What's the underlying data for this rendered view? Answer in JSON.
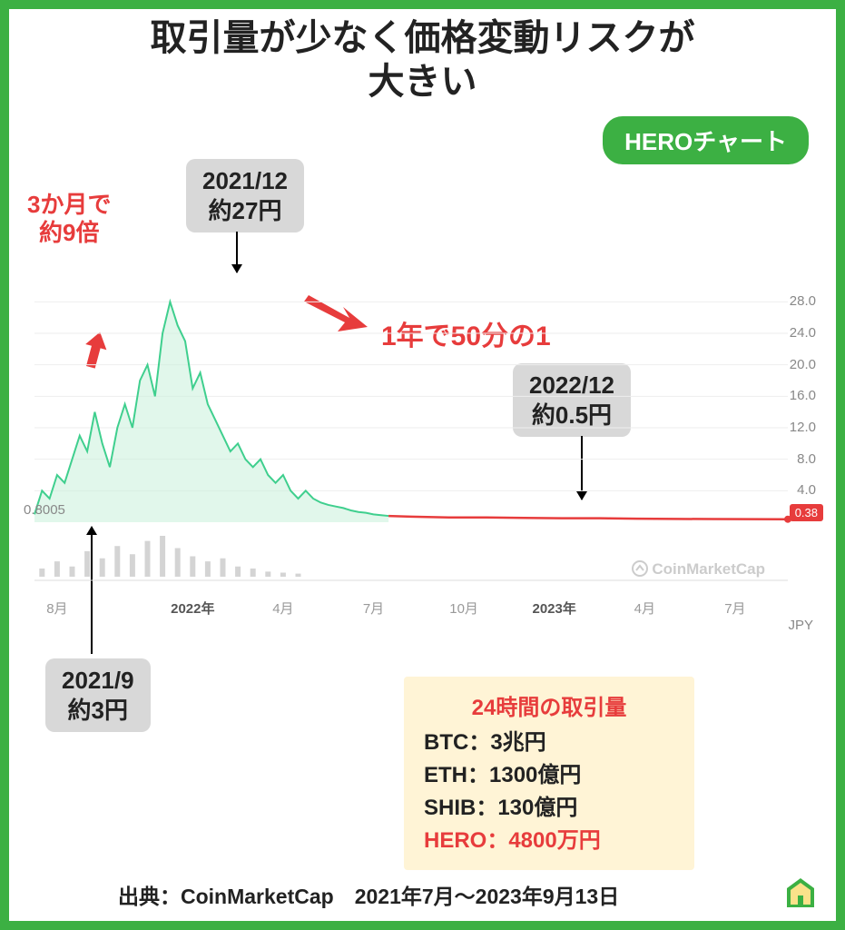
{
  "title_line1": "取引量が少なく価格変動リスクが",
  "title_line2": "大きい",
  "badge": "HEROチャート",
  "annotation_3month": "3か月で\n約9倍",
  "annotation_1year": "1年で50分の1",
  "callout_peak": {
    "date": "2021/12",
    "price": "約27円"
  },
  "callout_low": {
    "date": "2022/12",
    "price": "約0.5円"
  },
  "callout_start": {
    "date": "2021/9",
    "price": "約3円"
  },
  "chart": {
    "type": "line",
    "xlim": [
      0,
      100
    ],
    "ylim": [
      0,
      30
    ],
    "y_ticks": [
      28.0,
      24.0,
      20.0,
      16.0,
      12.0,
      8.0,
      4.0
    ],
    "x_ticks": [
      "8月",
      "2022年",
      "4月",
      "7月",
      "10月",
      "2023年",
      "4月",
      "7月"
    ],
    "x_tick_positions": [
      3,
      21,
      33,
      45,
      57,
      69,
      81,
      93
    ],
    "first_price": "0.8005",
    "last_price": "0.38",
    "line_color_up": "#3fcf8e",
    "line_color_flat": "#e73c3c",
    "fill_color": "#c8f0db",
    "grid_color": "#eeeeee",
    "background_color": "#ffffff",
    "volume_bar_color": "#d4d4d4",
    "series": [
      [
        0,
        1
      ],
      [
        1,
        4
      ],
      [
        2,
        3
      ],
      [
        3,
        6
      ],
      [
        4,
        5
      ],
      [
        5,
        8
      ],
      [
        6,
        11
      ],
      [
        7,
        9
      ],
      [
        8,
        14
      ],
      [
        9,
        10
      ],
      [
        10,
        7
      ],
      [
        11,
        12
      ],
      [
        12,
        15
      ],
      [
        13,
        12
      ],
      [
        14,
        18
      ],
      [
        15,
        20
      ],
      [
        16,
        16
      ],
      [
        17,
        24
      ],
      [
        18,
        28
      ],
      [
        19,
        25
      ],
      [
        20,
        23
      ],
      [
        21,
        17
      ],
      [
        22,
        19
      ],
      [
        23,
        15
      ],
      [
        24,
        13
      ],
      [
        25,
        11
      ],
      [
        26,
        9
      ],
      [
        27,
        10
      ],
      [
        28,
        8
      ],
      [
        29,
        7
      ],
      [
        30,
        8
      ],
      [
        31,
        6
      ],
      [
        32,
        5
      ],
      [
        33,
        6
      ],
      [
        34,
        4
      ],
      [
        35,
        3
      ],
      [
        36,
        4
      ],
      [
        37,
        3
      ],
      [
        38,
        2.5
      ],
      [
        39,
        2.2
      ],
      [
        40,
        2.0
      ],
      [
        41,
        1.8
      ],
      [
        42,
        1.5
      ],
      [
        43,
        1.3
      ],
      [
        44,
        1.2
      ],
      [
        45,
        1.0
      ],
      [
        46,
        0.9
      ],
      [
        47,
        0.8
      ]
    ],
    "series_flat": [
      [
        47,
        0.8
      ],
      [
        50,
        0.7
      ],
      [
        55,
        0.6
      ],
      [
        60,
        0.6
      ],
      [
        65,
        0.55
      ],
      [
        70,
        0.5
      ],
      [
        75,
        0.5
      ],
      [
        80,
        0.45
      ],
      [
        85,
        0.42
      ],
      [
        90,
        0.4
      ],
      [
        95,
        0.39
      ],
      [
        100,
        0.38
      ]
    ],
    "volume_bars": [
      [
        1,
        8
      ],
      [
        3,
        15
      ],
      [
        5,
        10
      ],
      [
        7,
        25
      ],
      [
        9,
        18
      ],
      [
        11,
        30
      ],
      [
        13,
        22
      ],
      [
        15,
        35
      ],
      [
        17,
        40
      ],
      [
        19,
        28
      ],
      [
        21,
        20
      ],
      [
        23,
        15
      ],
      [
        25,
        18
      ],
      [
        27,
        10
      ],
      [
        29,
        8
      ],
      [
        31,
        5
      ],
      [
        33,
        4
      ],
      [
        35,
        3
      ]
    ]
  },
  "volume_box": {
    "title": "24時間の取引量",
    "rows": [
      {
        "sym": "BTC",
        "val": "3兆円",
        "hero": false
      },
      {
        "sym": "ETH",
        "val": "1300億円",
        "hero": false
      },
      {
        "sym": "SHIB",
        "val": "130億円",
        "hero": false
      },
      {
        "sym": "HERO",
        "val": "4800万円",
        "hero": true
      }
    ]
  },
  "source": "出典：CoinMarketCap　2021年7月～2023年9月13日",
  "watermark": "CoinMarketCap",
  "axis_currency": "JPY",
  "colors": {
    "border": "#3cb043",
    "red": "#e73c3c",
    "callout_bg": "#d8d8d8",
    "volume_box_bg": "#fff4d6"
  }
}
